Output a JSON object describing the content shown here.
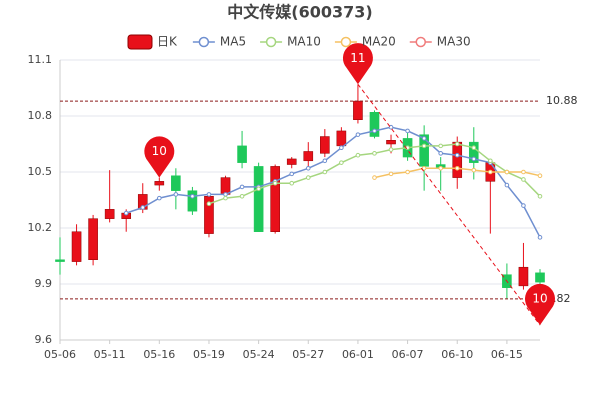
{
  "chart_data": {
    "type": "candlestick",
    "title": "中文传媒(600373)",
    "categories": [
      "05-06",
      null,
      null,
      "05-11",
      null,
      null,
      "05-16",
      null,
      null,
      "05-19",
      null,
      null,
      "05-24",
      null,
      null,
      "05-27",
      null,
      null,
      "06-01",
      null,
      null,
      "06-07",
      null,
      null,
      "06-10",
      null,
      null,
      "06-15",
      null,
      null
    ],
    "candles": {
      "name": "日K",
      "up_color": "#e8101a",
      "down_color": "#1ec85a",
      "open": [
        10.03,
        10.02,
        10.03,
        10.25,
        10.25,
        10.3,
        10.43,
        10.48,
        10.4,
        10.17,
        10.38,
        10.64,
        10.53,
        10.18,
        10.54,
        10.56,
        10.6,
        10.64,
        10.78,
        10.82,
        10.65,
        10.68,
        10.7,
        10.54,
        10.47,
        10.66,
        10.45,
        9.95,
        9.89,
        9.96
      ],
      "high": [
        10.15,
        10.22,
        10.27,
        10.51,
        10.3,
        10.44,
        10.47,
        10.52,
        10.42,
        10.38,
        10.48,
        10.72,
        10.55,
        10.54,
        10.58,
        10.66,
        10.73,
        10.74,
        10.97,
        10.83,
        10.7,
        10.72,
        10.75,
        10.58,
        10.69,
        10.74,
        10.56,
        10.01,
        10.12,
        9.98
      ],
      "low": [
        9.95,
        10.0,
        10.0,
        10.23,
        10.18,
        10.28,
        10.4,
        10.3,
        10.27,
        10.15,
        10.36,
        10.52,
        10.18,
        10.17,
        10.52,
        10.52,
        10.58,
        10.62,
        10.76,
        10.68,
        10.6,
        10.56,
        10.4,
        10.4,
        10.41,
        10.46,
        10.17,
        9.82,
        9.87,
        9.68
      ],
      "close": [
        10.02,
        10.18,
        10.25,
        10.3,
        10.28,
        10.38,
        10.45,
        10.4,
        10.29,
        10.37,
        10.47,
        10.55,
        10.18,
        10.53,
        10.57,
        10.61,
        10.69,
        10.72,
        10.88,
        10.69,
        10.67,
        10.58,
        10.53,
        10.52,
        10.66,
        10.55,
        10.55,
        9.88,
        9.99,
        9.91
      ]
    },
    "series": [
      {
        "name": "MA5",
        "color": "#6f8fd0",
        "values": [
          null,
          null,
          null,
          null,
          10.28,
          10.31,
          10.36,
          10.38,
          10.37,
          10.38,
          10.38,
          10.42,
          10.42,
          10.45,
          10.49,
          10.52,
          10.56,
          10.63,
          10.7,
          10.72,
          10.74,
          10.72,
          10.68,
          10.6,
          10.59,
          10.57,
          10.55,
          10.43,
          10.32,
          10.15
        ]
      },
      {
        "name": "MA10",
        "color": "#a5d67f",
        "values": [
          null,
          null,
          null,
          null,
          null,
          null,
          null,
          null,
          null,
          10.33,
          10.36,
          10.37,
          10.41,
          10.44,
          10.44,
          10.47,
          10.5,
          10.55,
          10.59,
          10.6,
          10.62,
          10.63,
          10.64,
          10.64,
          10.65,
          10.63,
          10.56,
          10.5,
          10.46,
          10.37
        ]
      },
      {
        "name": "MA20",
        "color": "#f5c162",
        "values": [
          null,
          null,
          null,
          null,
          null,
          null,
          null,
          null,
          null,
          null,
          null,
          null,
          null,
          null,
          null,
          null,
          null,
          null,
          null,
          10.47,
          10.49,
          10.5,
          10.52,
          10.52,
          10.52,
          10.51,
          10.5,
          10.5,
          10.5,
          10.48
        ]
      },
      {
        "name": "MA30",
        "color": "#f07b7b",
        "values": [
          null,
          null,
          null,
          null,
          null,
          null,
          null,
          null,
          null,
          null,
          null,
          null,
          null,
          null,
          null,
          null,
          null,
          null,
          null,
          null,
          null,
          null,
          null,
          null,
          null,
          null,
          null,
          null,
          null,
          null
        ]
      }
    ],
    "ylim": [
      9.6,
      11.1
    ],
    "yticks": [
      9.6,
      9.9,
      10.2,
      10.5,
      10.8,
      11.1
    ],
    "grid": true,
    "reference_lines": [
      {
        "value": 10.88,
        "label": "10.88"
      },
      {
        "value": 9.82,
        "label": "9.82"
      }
    ],
    "pins": [
      {
        "value": 10.97,
        "label": "11"
      },
      {
        "value": 10.47,
        "label": "10"
      },
      {
        "value": 9.68,
        "label": "10"
      }
    ],
    "annotation_color": "#e8101a"
  }
}
